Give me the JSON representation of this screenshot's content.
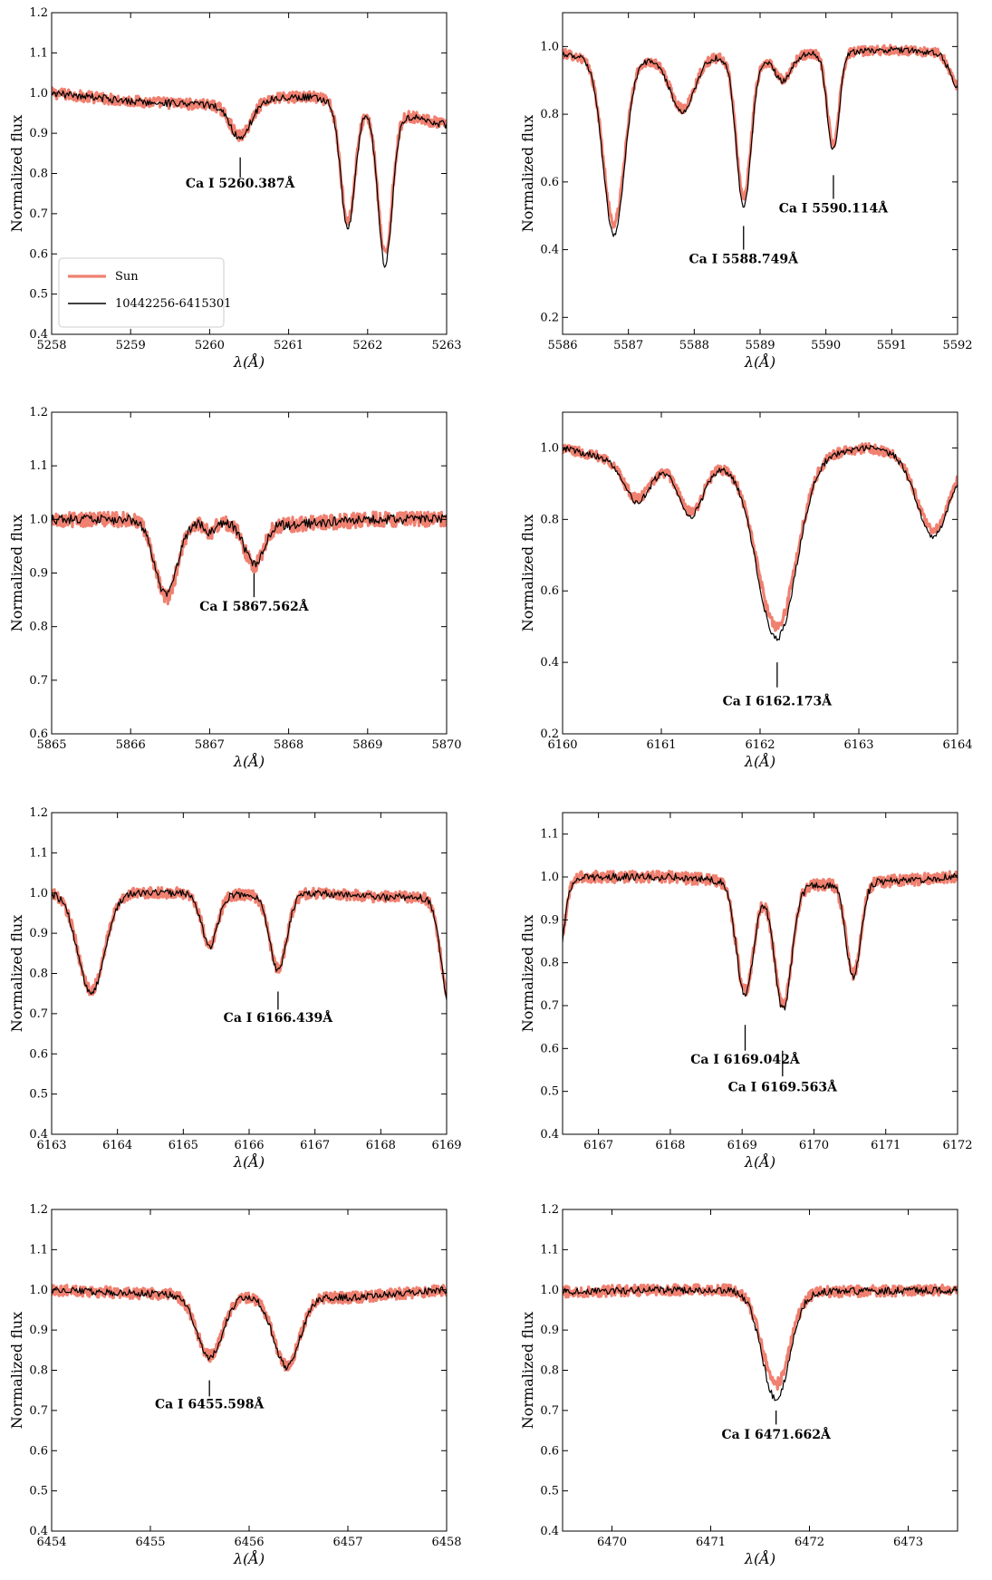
{
  "legend": {
    "entries": [
      {
        "label": "Sun",
        "color": "#f08070"
      },
      {
        "label": "10442256-6415301",
        "color": "#000000"
      }
    ]
  },
  "colors": {
    "sun": "#f08070",
    "star": "#000000",
    "frame": "#000000"
  },
  "chart_data": [
    {
      "type": "line",
      "xlabel": "λ(Å)",
      "ylabel": "Normalized flux",
      "xlim": [
        5258,
        5263
      ],
      "ylim": [
        0.4,
        1.2
      ],
      "xticks": [
        5258,
        5259,
        5260,
        5261,
        5262,
        5263
      ],
      "yticks": [
        0.4,
        0.5,
        0.6,
        0.7,
        0.8,
        0.9,
        1.0,
        1.1,
        1.2
      ],
      "xtick_labels": [
        "5258",
        "5259",
        "5260",
        "5261",
        "5262",
        "5263"
      ],
      "ytick_labels": [
        "0.4",
        "0.5",
        "0.6",
        "0.7",
        "0.8",
        "0.9",
        "1.0",
        "1.1",
        "1.2"
      ],
      "continuum": [
        [
          5258,
          1.0
        ],
        [
          5258.5,
          0.99
        ],
        [
          5259,
          0.98
        ],
        [
          5259.5,
          0.975
        ],
        [
          5260,
          0.97
        ],
        [
          5261,
          0.99
        ],
        [
          5261.3,
          0.99
        ],
        [
          5262.6,
          0.94
        ],
        [
          5263,
          0.92
        ]
      ],
      "lines": [
        {
          "center": 5260.39,
          "depth": 0.09,
          "width": 0.13
        },
        {
          "center": 5261.75,
          "depth": 0.31,
          "width": 0.09
        },
        {
          "center": 5262.22,
          "depth": 0.38,
          "width": 0.09
        }
      ],
      "sun_depth_scale": 0.94,
      "legend_location": "lower-left",
      "annotations": [
        {
          "label": "Ca I 5260.387Å",
          "x": 5260.387,
          "y_top": 0.84,
          "y_bottom": 0.79,
          "text_y": 0.765
        }
      ]
    },
    {
      "type": "line",
      "xlabel": "λ(Å)",
      "ylabel": "Normalized flux",
      "xlim": [
        5586,
        5592
      ],
      "ylim": [
        0.15,
        1.1
      ],
      "xticks": [
        5586,
        5587,
        5588,
        5589,
        5590,
        5591,
        5592
      ],
      "yticks": [
        0.2,
        0.4,
        0.6,
        0.8,
        1.0
      ],
      "xtick_labels": [
        "5586",
        "5587",
        "5588",
        "5589",
        "5590",
        "5591",
        "5592"
      ],
      "ytick_labels": [
        "0.2",
        "0.4",
        "0.6",
        "0.8",
        "1.0"
      ],
      "continuum": [
        [
          5586,
          0.98
        ],
        [
          5586.5,
          0.96
        ],
        [
          5587.3,
          0.96
        ],
        [
          5588.2,
          0.97
        ],
        [
          5589,
          0.96
        ],
        [
          5589.8,
          0.98
        ],
        [
          5591,
          0.99
        ],
        [
          5592,
          0.98
        ]
      ],
      "lines": [
        {
          "center": 5586.78,
          "depth": 0.52,
          "width": 0.16
        },
        {
          "center": 5587.82,
          "depth": 0.16,
          "width": 0.18
        },
        {
          "center": 5588.75,
          "depth": 0.44,
          "width": 0.11
        },
        {
          "center": 5589.35,
          "depth": 0.07,
          "width": 0.12
        },
        {
          "center": 5590.11,
          "depth": 0.29,
          "width": 0.09
        },
        {
          "center": 5592.0,
          "depth": 0.1,
          "width": 0.12
        }
      ],
      "sun_depth_scale": 0.93,
      "annotations": [
        {
          "label": "Ca I 5588.749Å",
          "x": 5588.749,
          "y_top": 0.47,
          "y_bottom": 0.4,
          "text_y": 0.36
        },
        {
          "label": "Ca I 5590.114Å",
          "x": 5590.114,
          "y_top": 0.62,
          "y_bottom": 0.55,
          "text_y": 0.51
        }
      ]
    },
    {
      "type": "line",
      "xlabel": "λ(Å)",
      "ylabel": "Normalized flux",
      "xlim": [
        5865,
        5870
      ],
      "ylim": [
        0.6,
        1.2
      ],
      "xticks": [
        5865,
        5866,
        5867,
        5868,
        5869,
        5870
      ],
      "yticks": [
        0.6,
        0.7,
        0.8,
        0.9,
        1.0,
        1.1,
        1.2
      ],
      "xtick_labels": [
        "5865",
        "5866",
        "5867",
        "5868",
        "5869",
        "5870"
      ],
      "ytick_labels": [
        "0.6",
        "0.7",
        "0.8",
        "0.9",
        "1.0",
        "1.1",
        "1.2"
      ],
      "continuum": [
        [
          5865,
          1.0
        ],
        [
          5866,
          1.0
        ],
        [
          5867,
          0.995
        ],
        [
          5868,
          0.99
        ],
        [
          5869,
          1.0
        ],
        [
          5870,
          1.0
        ]
      ],
      "lines": [
        {
          "center": 5866.45,
          "depth": 0.14,
          "width": 0.14
        },
        {
          "center": 5867.0,
          "depth": 0.02,
          "width": 0.06
        },
        {
          "center": 5867.56,
          "depth": 0.075,
          "width": 0.12
        }
      ],
      "sun_depth_scale": 1.03,
      "annotations": [
        {
          "label": "Ca I 5867.562Å",
          "x": 5867.562,
          "y_top": 0.9,
          "y_bottom": 0.855,
          "text_y": 0.83
        }
      ]
    },
    {
      "type": "line",
      "xlabel": "λ(Å)",
      "ylabel": "Normalized flux",
      "xlim": [
        6160,
        6164
      ],
      "ylim": [
        0.2,
        1.1
      ],
      "xticks": [
        6160,
        6161,
        6162,
        6163,
        6164
      ],
      "yticks": [
        0.2,
        0.4,
        0.6,
        0.8,
        1.0
      ],
      "xtick_labels": [
        "6160",
        "6161",
        "6162",
        "6163",
        "6164"
      ],
      "ytick_labels": [
        "0.2",
        "0.4",
        "0.6",
        "0.8",
        "1.0"
      ],
      "continuum": [
        [
          6160,
          1.0
        ],
        [
          6160.3,
          0.98
        ],
        [
          6161,
          0.95
        ],
        [
          6161.5,
          0.95
        ],
        [
          6162,
          0.96
        ],
        [
          6162.8,
          0.99
        ],
        [
          6163.1,
          1.0
        ],
        [
          6163.5,
          0.98
        ],
        [
          6164,
          0.97
        ]
      ],
      "lines": [
        {
          "center": 6160.75,
          "depth": 0.11,
          "width": 0.13
        },
        {
          "center": 6161.3,
          "depth": 0.14,
          "width": 0.12
        },
        {
          "center": 6162.17,
          "depth": 0.5,
          "width": 0.2
        },
        {
          "center": 6163.75,
          "depth": 0.22,
          "width": 0.16
        }
      ],
      "sun_depth_scale": 0.93,
      "annotations": [
        {
          "label": "Ca I 6162.173Å",
          "x": 6162.173,
          "y_top": 0.4,
          "y_bottom": 0.33,
          "text_y": 0.28
        }
      ]
    },
    {
      "type": "line",
      "xlabel": "λ(Å)",
      "ylabel": "Normalized flux",
      "xlim": [
        6163,
        6169
      ],
      "ylim": [
        0.4,
        1.2
      ],
      "xticks": [
        6163,
        6164,
        6165,
        6166,
        6167,
        6168,
        6169
      ],
      "yticks": [
        0.4,
        0.5,
        0.6,
        0.7,
        0.8,
        0.9,
        1.0,
        1.1,
        1.2
      ],
      "xtick_labels": [
        "6163",
        "6164",
        "6165",
        "6166",
        "6167",
        "6168",
        "6169"
      ],
      "ytick_labels": [
        "0.4",
        "0.5",
        "0.6",
        "0.7",
        "0.8",
        "0.9",
        "1.0",
        "1.1",
        "1.2"
      ],
      "continuum": [
        [
          6163,
          1.0
        ],
        [
          6164,
          1.0
        ],
        [
          6165,
          1.0
        ],
        [
          6166,
          0.995
        ],
        [
          6167,
          1.0
        ],
        [
          6168,
          0.99
        ],
        [
          6168.5,
          0.99
        ],
        [
          6169,
          0.99
        ]
      ],
      "lines": [
        {
          "center": 6163.6,
          "depth": 0.25,
          "width": 0.2
        },
        {
          "center": 6165.4,
          "depth": 0.13,
          "width": 0.12
        },
        {
          "center": 6166.44,
          "depth": 0.19,
          "width": 0.13
        },
        {
          "center": 6169.05,
          "depth": 0.27,
          "width": 0.13
        }
      ],
      "sun_depth_scale": 0.97,
      "annotations": [
        {
          "label": "Ca I 6166.439Å",
          "x": 6166.439,
          "y_top": 0.755,
          "y_bottom": 0.71,
          "text_y": 0.68
        }
      ]
    },
    {
      "type": "line",
      "xlabel": "λ(Å)",
      "ylabel": "Normalized flux",
      "xlim": [
        6166.5,
        6172
      ],
      "ylim": [
        0.4,
        1.15
      ],
      "xticks": [
        6167,
        6168,
        6169,
        6170,
        6171,
        6172
      ],
      "yticks": [
        0.4,
        0.5,
        0.6,
        0.7,
        0.8,
        0.9,
        1.0,
        1.1
      ],
      "xtick_labels": [
        "6167",
        "6168",
        "6169",
        "6170",
        "6171",
        "6172"
      ],
      "ytick_labels": [
        "0.4",
        "0.5",
        "0.6",
        "0.7",
        "0.8",
        "0.9",
        "1.0",
        "1.1"
      ],
      "continuum": [
        [
          6166.5,
          1.0
        ],
        [
          6168,
          1.0
        ],
        [
          6168.8,
          0.99
        ],
        [
          6169.3,
          0.98
        ],
        [
          6170,
          0.98
        ],
        [
          6171,
          0.99
        ],
        [
          6172,
          1.0
        ]
      ],
      "lines": [
        {
          "center": 6166.43,
          "depth": 0.2,
          "width": 0.09
        },
        {
          "center": 6169.04,
          "depth": 0.26,
          "width": 0.12
        },
        {
          "center": 6169.57,
          "depth": 0.29,
          "width": 0.12
        },
        {
          "center": 6170.55,
          "depth": 0.22,
          "width": 0.1
        }
      ],
      "sun_depth_scale": 0.97,
      "annotations": [
        {
          "label": "Ca I 6169.042Å",
          "x": 6169.042,
          "y_top": 0.655,
          "y_bottom": 0.595,
          "text_y": 0.565
        },
        {
          "label": "Ca I 6169.563Å",
          "x": 6169.563,
          "y_top": 0.595,
          "y_bottom": 0.535,
          "text_y": 0.5
        }
      ]
    },
    {
      "type": "line",
      "xlabel": "λ(Å)",
      "ylabel": "Normalized flux",
      "xlim": [
        6454,
        6458
      ],
      "ylim": [
        0.4,
        1.2
      ],
      "xticks": [
        6454,
        6455,
        6456,
        6457,
        6458
      ],
      "yticks": [
        0.4,
        0.5,
        0.6,
        0.7,
        0.8,
        0.9,
        1.0,
        1.1,
        1.2
      ],
      "xtick_labels": [
        "6454",
        "6455",
        "6456",
        "6457",
        "6458"
      ],
      "ytick_labels": [
        "0.4",
        "0.5",
        "0.6",
        "0.7",
        "0.8",
        "0.9",
        "1.0",
        "1.1",
        "1.2"
      ],
      "continuum": [
        [
          6454,
          1.0
        ],
        [
          6455,
          0.99
        ],
        [
          6455.3,
          0.99
        ],
        [
          6456,
          0.985
        ],
        [
          6457,
          0.98
        ],
        [
          6458,
          1.0
        ]
      ],
      "lines": [
        {
          "center": 6455.6,
          "depth": 0.155,
          "width": 0.13
        },
        {
          "center": 6456.38,
          "depth": 0.175,
          "width": 0.13
        },
        {
          "center": 6454.0,
          "depth": 0.0,
          "width": 0.1
        }
      ],
      "sun_depth_scale": 0.98,
      "annotations": [
        {
          "label": "Ca I 6455.598Å",
          "x": 6455.598,
          "y_top": 0.775,
          "y_bottom": 0.735,
          "text_y": 0.705
        }
      ]
    },
    {
      "type": "line",
      "xlabel": "λ(Å)",
      "ylabel": "Normalized flux",
      "xlim": [
        6469.5,
        6473.5
      ],
      "ylim": [
        0.4,
        1.2
      ],
      "xticks": [
        6470,
        6471,
        6472,
        6473
      ],
      "yticks": [
        0.4,
        0.5,
        0.6,
        0.7,
        0.8,
        0.9,
        1.0,
        1.1,
        1.2
      ],
      "xtick_labels": [
        "6470",
        "6471",
        "6472",
        "6473"
      ],
      "ytick_labels": [
        "0.4",
        "0.5",
        "0.6",
        "0.7",
        "0.8",
        "0.9",
        "1.0",
        "1.1",
        "1.2"
      ],
      "continuum": [
        [
          6469.5,
          0.995
        ],
        [
          6470.5,
          1.0
        ],
        [
          6471.2,
          1.0
        ],
        [
          6472,
          0.995
        ],
        [
          6473.5,
          1.0
        ]
      ],
      "lines": [
        {
          "center": 6471.66,
          "depth": 0.27,
          "width": 0.14
        }
      ],
      "sun_depth_scale": 0.86,
      "annotations": [
        {
          "label": "Ca I 6471.662Å",
          "x": 6471.662,
          "y_top": 0.7,
          "y_bottom": 0.665,
          "text_y": 0.63
        }
      ]
    }
  ]
}
